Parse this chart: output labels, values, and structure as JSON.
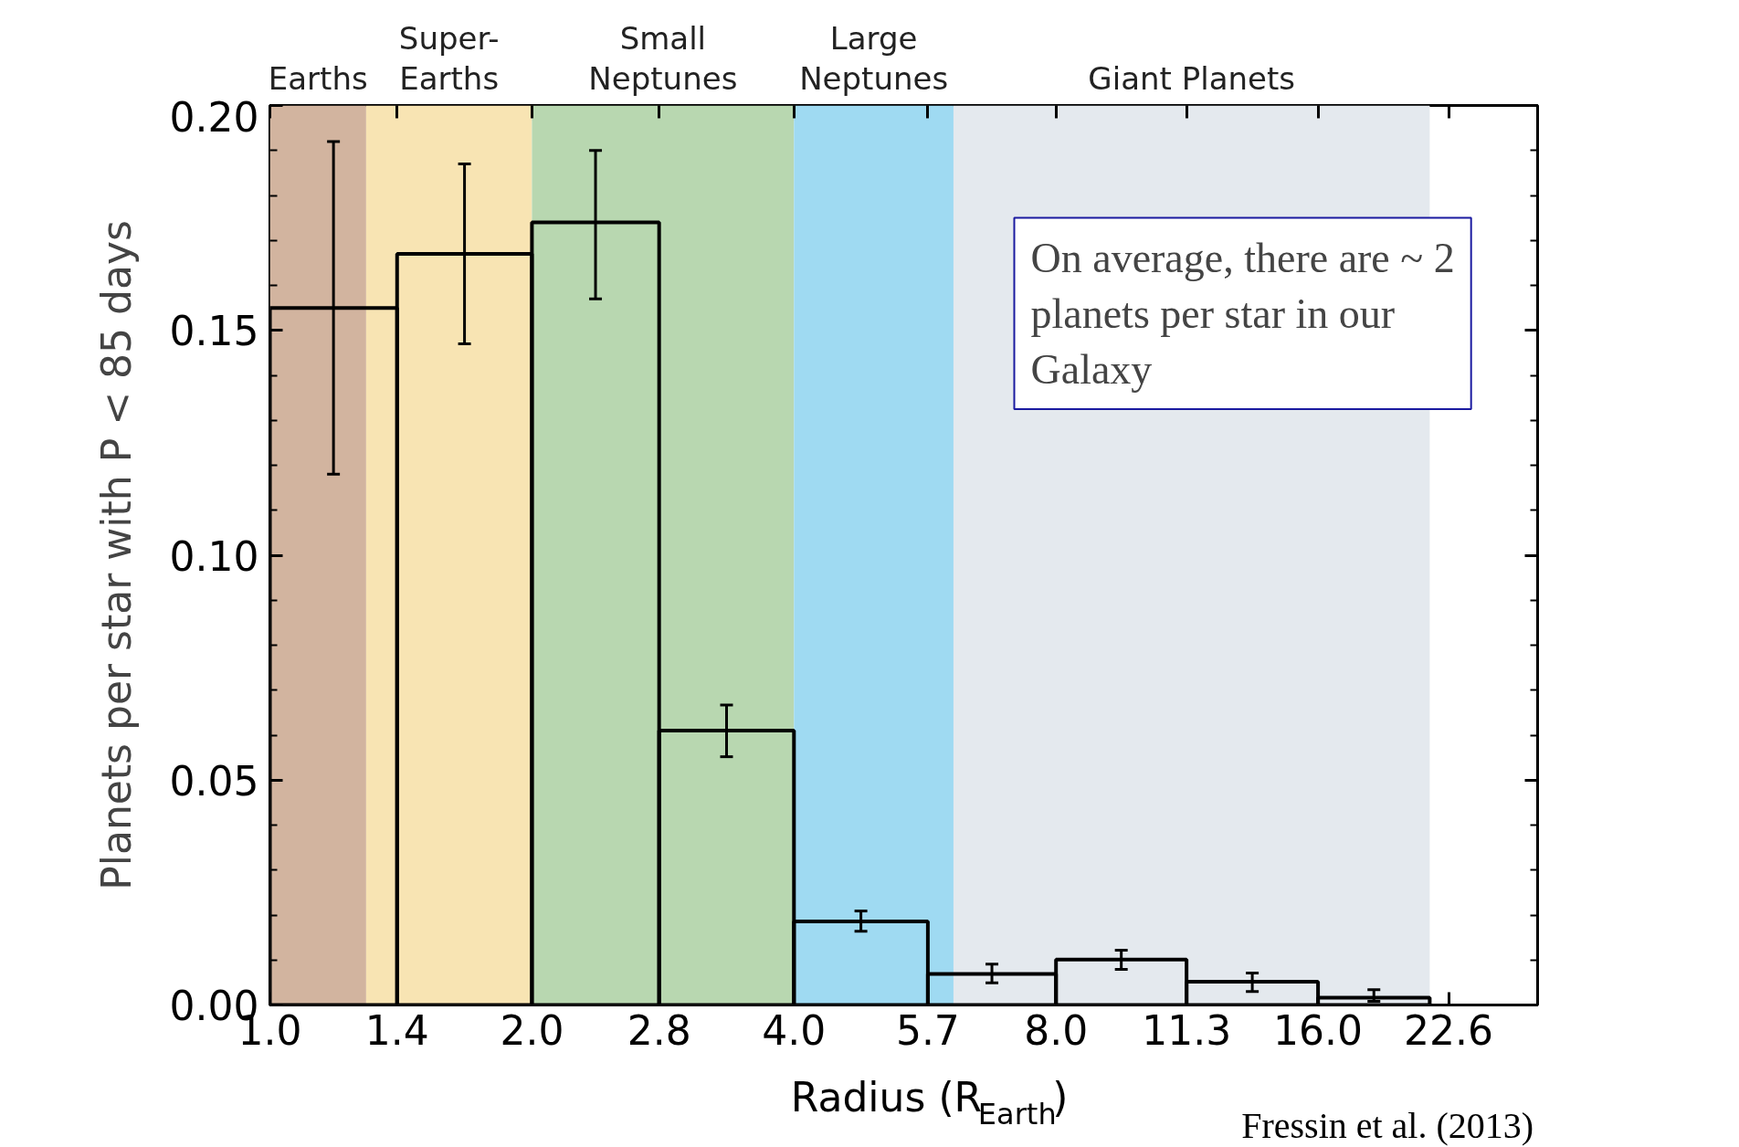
{
  "chart_data": {
    "type": "histogram",
    "ylabel": "Planets per star with P < 85 days",
    "xlabel": "Radius (R$_{Earth}$)",
    "bins": [
      1.0,
      1.4,
      2.0,
      2.8,
      4.0,
      5.7,
      8.0,
      11.3,
      16.0,
      21.5
    ],
    "values": [
      0.155,
      0.167,
      0.174,
      0.061,
      0.0186,
      0.0069,
      0.0101,
      0.0052,
      0.0016
    ],
    "errors": [
      [
        0.118,
        0.192
      ],
      [
        0.147,
        0.187
      ],
      [
        0.157,
        0.19
      ],
      [
        0.0552,
        0.0667
      ],
      [
        0.0164,
        0.0209
      ],
      [
        0.0049,
        0.0091
      ],
      [
        0.0079,
        0.0122
      ],
      [
        0.003,
        0.0071
      ],
      [
        0.0008,
        0.0034
      ]
    ],
    "color": "#000000",
    "log": "x",
    "xlim": [
      1.0,
      28.6
    ],
    "ylim": [
      0.0,
      0.2
    ],
    "xticks": [
      {
        "value": 1.0,
        "label": "1.0"
      },
      1.4,
      {
        "value": 2.0,
        "label": "2.0"
      },
      2.8,
      {
        "value": 4.0,
        "label": "4.0"
      },
      5.7,
      {
        "value": 8.0,
        "label": "8.0"
      },
      11.3,
      {
        "value": 16.0,
        "label": "16.0"
      },
      22.6
    ],
    "yticks": [
      {
        "value": 0.0,
        "label": "0.00"
      },
      0.05,
      {
        "value": 0.1,
        "label": "0.10"
      },
      0.15,
      {
        "value": 0.2,
        "label": "0.20"
      }
    ],
    "bands": [
      {
        "axis": "x",
        "from": 1.0,
        "to": 1.29,
        "label": "Earths",
        "color": "#d2b49f"
      },
      {
        "axis": "x",
        "from": 1.29,
        "to": 2.0,
        "label": "Super-\nEarths",
        "color": "#f8e4b3"
      },
      {
        "axis": "x",
        "from": 2.0,
        "to": 4.0,
        "label": "Small\nNeptunes",
        "color": "#b8d7b0"
      },
      {
        "axis": "x",
        "from": 4.0,
        "to": 6.1,
        "label": "Large\nNeptunes",
        "color": "#9fdaf2"
      },
      {
        "axis": "x",
        "from": 6.1,
        "to": 21.5,
        "label": "Giant Planets",
        "color": "#e4e9ee"
      }
    ],
    "annotations": [
      "On average, there are ~ 2\nplanets per star in our\nGalaxy",
      "Fressin et al. (2013)"
    ],
    "grid": false
  }
}
